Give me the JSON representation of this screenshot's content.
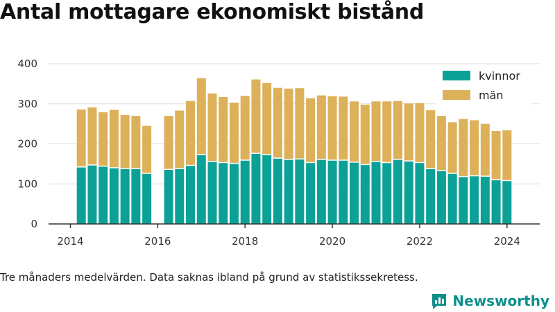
{
  "title": "Antal mottagare ekonomiskt bistånd",
  "note": "Tre månaders medelvärden. Data saknas ibland på grund av statistikssekretess.",
  "brand": {
    "name": "Newsworthy"
  },
  "colors": {
    "kvinnor": "#0ca196",
    "man": "#ddb05a",
    "axis": "#333333",
    "grid": "#dddddd"
  },
  "chart_data": {
    "type": "bar",
    "stacked": true,
    "x_type": "date",
    "x": [
      "2014-04",
      "2014-07",
      "2014-10",
      "2015-01",
      "2015-04",
      "2015-07",
      "2015-10",
      "2016-04",
      "2016-07",
      "2016-10",
      "2017-01",
      "2017-04",
      "2017-07",
      "2017-10",
      "2018-01",
      "2018-04",
      "2018-07",
      "2018-10",
      "2019-01",
      "2019-04",
      "2019-07",
      "2019-10",
      "2020-01",
      "2020-04",
      "2020-07",
      "2020-10",
      "2021-01",
      "2021-04",
      "2021-07",
      "2021-10",
      "2022-01",
      "2022-04",
      "2022-07",
      "2022-10",
      "2023-01",
      "2023-04",
      "2023-07",
      "2023-10",
      "2024-01"
    ],
    "series": [
      {
        "name": "kvinnor",
        "values": [
          141,
          146,
          143,
          139,
          137,
          137,
          125,
          135,
          137,
          145,
          172,
          155,
          152,
          150,
          158,
          175,
          172,
          163,
          160,
          161,
          152,
          160,
          158,
          158,
          153,
          147,
          155,
          152,
          160,
          156,
          152,
          137,
          132,
          125,
          117,
          119,
          118,
          109,
          107
        ]
      },
      {
        "name": "män",
        "values": [
          145,
          145,
          136,
          146,
          135,
          133,
          120,
          135,
          146,
          162,
          192,
          171,
          165,
          153,
          162,
          186,
          180,
          177,
          178,
          178,
          162,
          161,
          161,
          160,
          153,
          151,
          151,
          154,
          147,
          145,
          150,
          147,
          138,
          129,
          145,
          140,
          132,
          123,
          127
        ]
      }
    ],
    "xlim": [
      "2013-07",
      "2024-10"
    ],
    "ylim": [
      0,
      400
    ],
    "x_ticks": [
      "2014",
      "2016",
      "2018",
      "2020",
      "2022",
      "2024"
    ],
    "y_ticks": [
      "0",
      "100",
      "200",
      "300",
      "400"
    ],
    "grid": "horizontal",
    "legend_position": "top-right",
    "legend_entries": [
      "kvinnor",
      "män"
    ]
  }
}
